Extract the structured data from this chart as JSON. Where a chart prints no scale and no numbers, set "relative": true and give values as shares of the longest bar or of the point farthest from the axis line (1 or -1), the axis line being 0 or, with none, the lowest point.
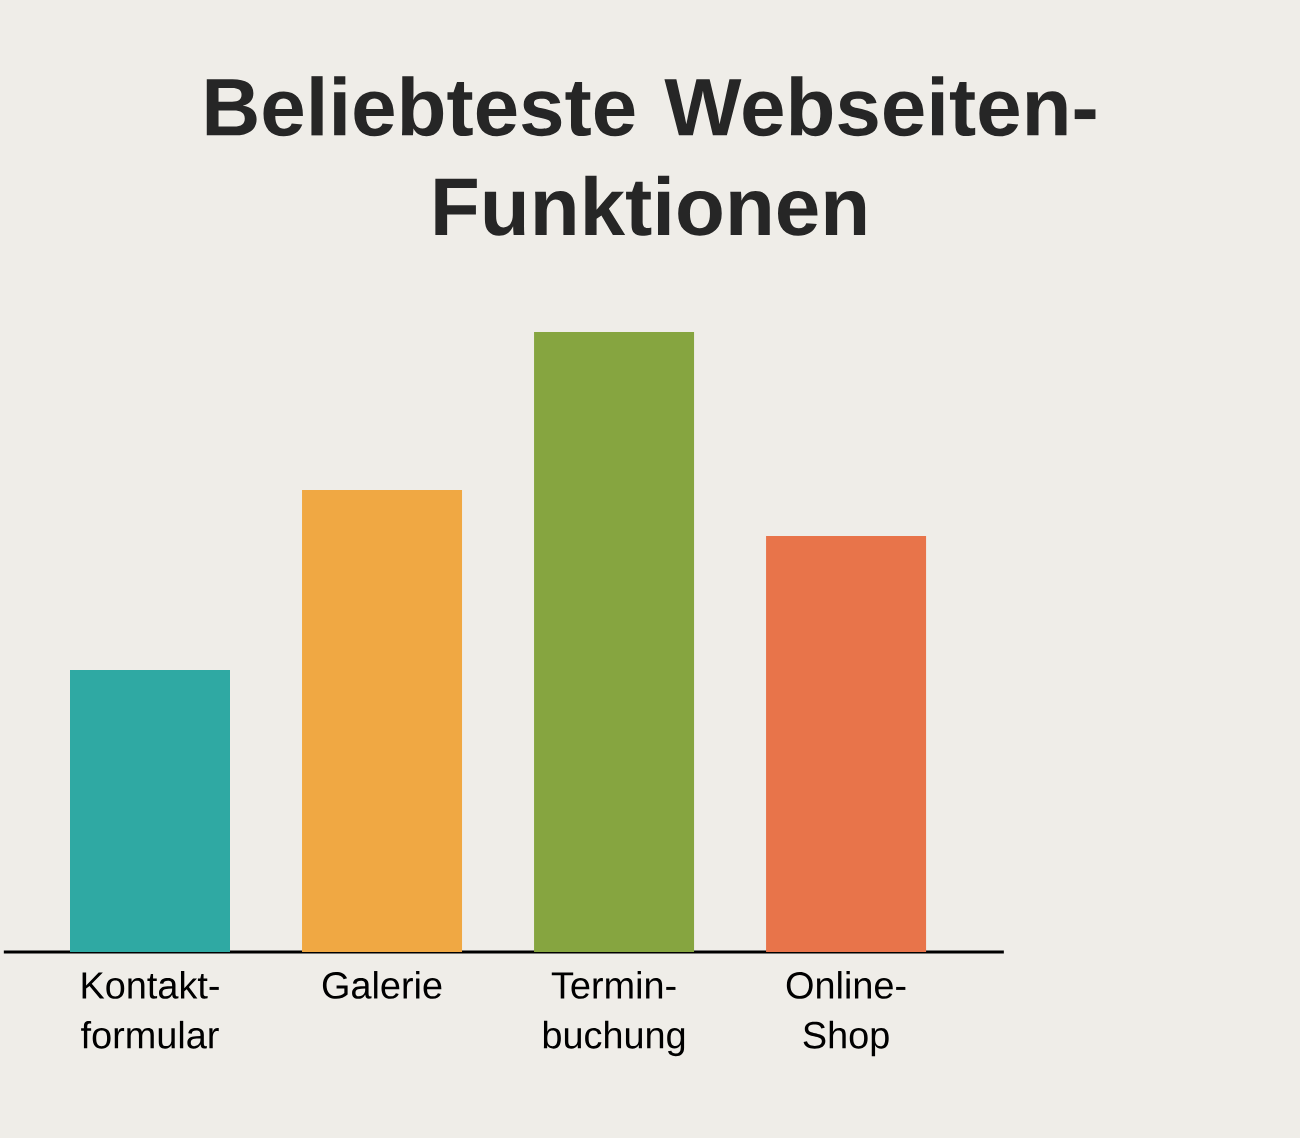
{
  "chart_data": {
    "type": "bar",
    "title": "Beliebteste Webseiten- Funktionen",
    "categories": [
      "Kontakt- formular",
      "Galerie",
      "Termin- buchung",
      "Online- Shop"
    ],
    "values": [
      0.455,
      0.745,
      1,
      0.671
    ],
    "colors": [
      "#2fa9a3",
      "#f0a843",
      "#86a540",
      "#e8744a"
    ],
    "relative": true
  }
}
